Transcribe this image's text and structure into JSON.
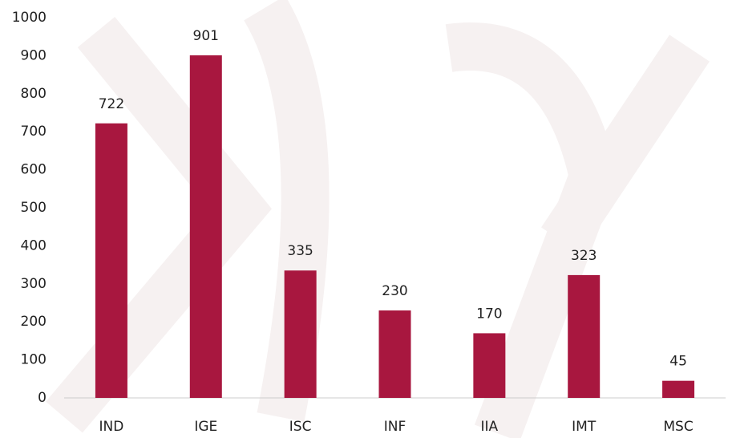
{
  "chart_data": {
    "type": "bar",
    "categories": [
      "IND",
      "IGE",
      "ISC",
      "INF",
      "IIA",
      "IMT",
      "MSC"
    ],
    "values": [
      722,
      901,
      335,
      230,
      170,
      323,
      45
    ],
    "color": "#a8173f",
    "ylim": [
      0,
      1000
    ],
    "yticks": [
      0,
      100,
      200,
      300,
      400,
      500,
      600,
      700,
      800,
      900,
      1000
    ],
    "grid": false
  }
}
